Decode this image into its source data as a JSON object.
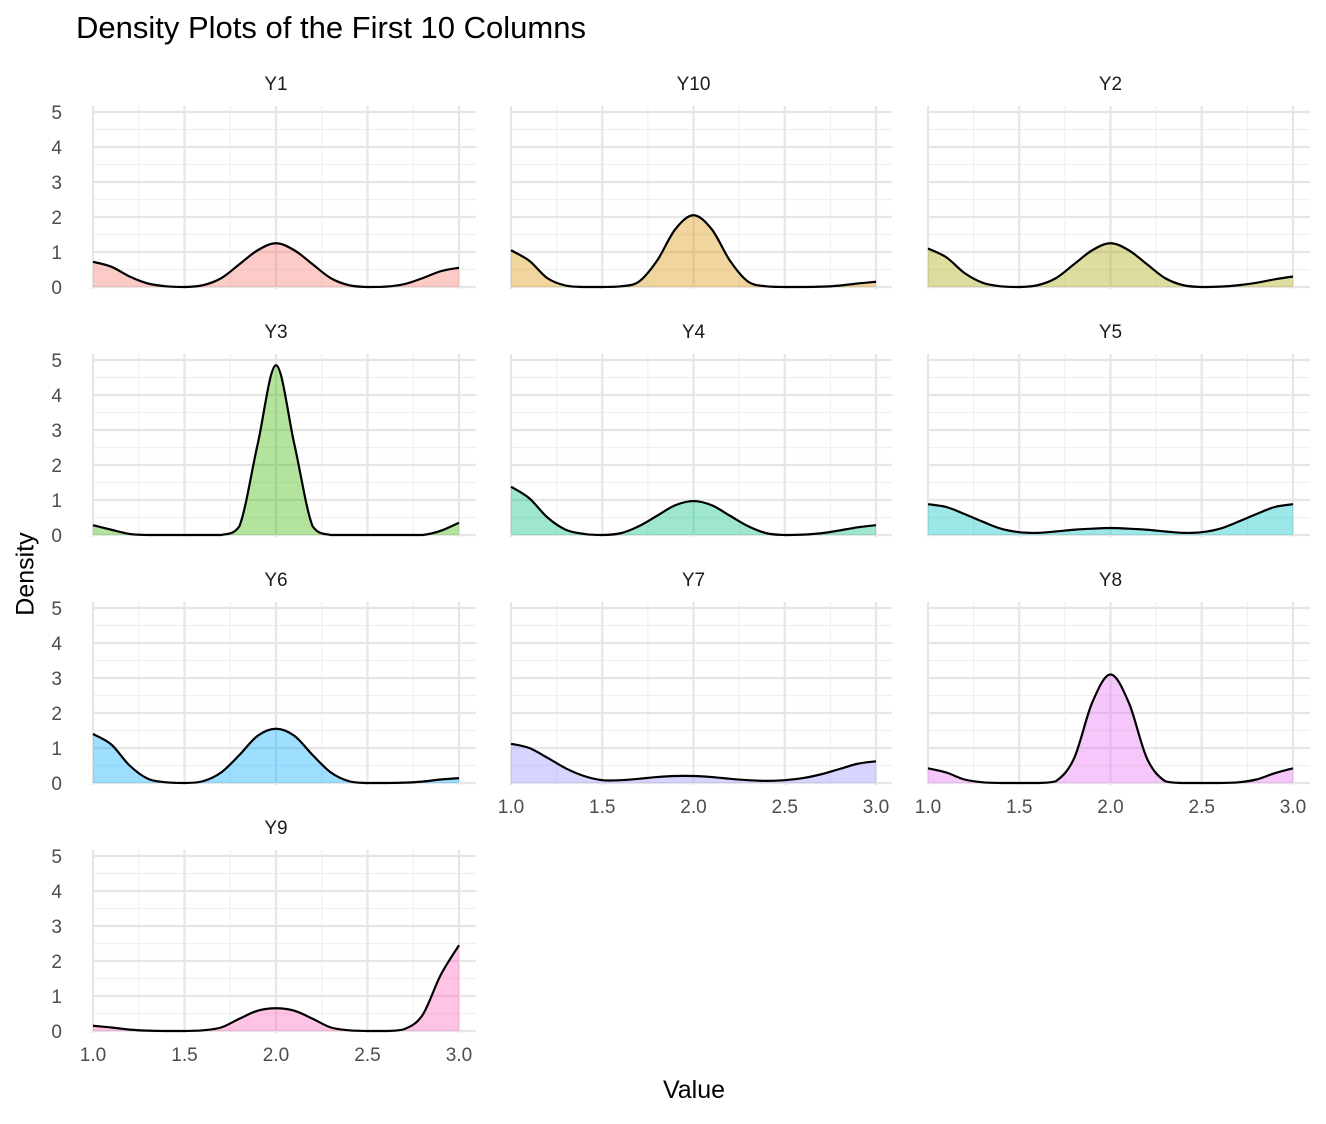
{
  "chart_data": {
    "type": "area",
    "title": "Density Plots of the First 10 Columns",
    "xlabel": "Value",
    "ylabel": "Density",
    "xlim": [
      1.0,
      3.0
    ],
    "ylim": [
      0,
      5
    ],
    "x_ticks": [
      "1.0",
      "1.5",
      "2.0",
      "2.5",
      "3.0"
    ],
    "y_ticks": [
      "0",
      "1",
      "2",
      "3",
      "4",
      "5"
    ],
    "grid": true,
    "legend": "none",
    "x": [
      1.0,
      1.1,
      1.2,
      1.3,
      1.4,
      1.5,
      1.6,
      1.7,
      1.8,
      1.9,
      2.0,
      2.1,
      2.2,
      2.3,
      2.4,
      2.5,
      2.6,
      2.7,
      2.8,
      2.9,
      3.0
    ],
    "panels": [
      {
        "name": "Y1",
        "color": "#F8766D",
        "values": [
          0.72,
          0.58,
          0.3,
          0.1,
          0.02,
          0.0,
          0.05,
          0.25,
          0.65,
          1.05,
          1.25,
          1.05,
          0.65,
          0.25,
          0.05,
          0.0,
          0.01,
          0.08,
          0.25,
          0.45,
          0.55
        ]
      },
      {
        "name": "Y10",
        "color": "#D89000",
        "values": [
          1.05,
          0.75,
          0.25,
          0.04,
          0.0,
          0.0,
          0.02,
          0.15,
          0.75,
          1.65,
          2.05,
          1.65,
          0.75,
          0.15,
          0.02,
          0.0,
          0.0,
          0.01,
          0.04,
          0.1,
          0.15
        ]
      },
      {
        "name": "Y2",
        "color": "#A3A500",
        "values": [
          1.1,
          0.85,
          0.4,
          0.12,
          0.02,
          0.0,
          0.05,
          0.25,
          0.65,
          1.05,
          1.25,
          1.05,
          0.65,
          0.25,
          0.05,
          0.0,
          0.01,
          0.05,
          0.12,
          0.22,
          0.3
        ]
      },
      {
        "name": "Y3",
        "color": "#39B600",
        "values": [
          0.28,
          0.15,
          0.03,
          0.0,
          0.0,
          0.0,
          0.0,
          0.0,
          0.25,
          2.6,
          4.85,
          2.6,
          0.25,
          0.0,
          0.0,
          0.0,
          0.0,
          0.0,
          0.0,
          0.12,
          0.35
        ]
      },
      {
        "name": "Y4",
        "color": "#00BF7D",
        "values": [
          1.38,
          1.05,
          0.5,
          0.15,
          0.03,
          0.0,
          0.05,
          0.25,
          0.55,
          0.85,
          0.97,
          0.85,
          0.55,
          0.25,
          0.05,
          0.0,
          0.01,
          0.05,
          0.13,
          0.22,
          0.28
        ]
      },
      {
        "name": "Y5",
        "color": "#00BFC4",
        "values": [
          0.88,
          0.8,
          0.6,
          0.38,
          0.18,
          0.08,
          0.06,
          0.1,
          0.15,
          0.18,
          0.2,
          0.18,
          0.15,
          0.1,
          0.06,
          0.08,
          0.18,
          0.38,
          0.6,
          0.8,
          0.88
        ]
      },
      {
        "name": "Y6",
        "color": "#00A9FF",
        "values": [
          1.4,
          1.1,
          0.5,
          0.12,
          0.02,
          0.0,
          0.05,
          0.3,
          0.8,
          1.35,
          1.55,
          1.35,
          0.8,
          0.3,
          0.05,
          0.0,
          0.0,
          0.01,
          0.04,
          0.1,
          0.14
        ]
      },
      {
        "name": "Y7",
        "color": "#9590FF",
        "values": [
          1.12,
          1.0,
          0.72,
          0.42,
          0.2,
          0.08,
          0.08,
          0.12,
          0.17,
          0.2,
          0.2,
          0.17,
          0.12,
          0.08,
          0.06,
          0.08,
          0.14,
          0.25,
          0.4,
          0.55,
          0.62
        ]
      },
      {
        "name": "Y8",
        "color": "#E76BF3",
        "values": [
          0.42,
          0.3,
          0.1,
          0.02,
          0.0,
          0.0,
          0.0,
          0.05,
          0.7,
          2.3,
          3.1,
          2.3,
          0.7,
          0.05,
          0.0,
          0.0,
          0.0,
          0.02,
          0.1,
          0.28,
          0.42
        ]
      },
      {
        "name": "Y9",
        "color": "#FF62BC",
        "values": [
          0.15,
          0.1,
          0.04,
          0.01,
          0.0,
          0.0,
          0.02,
          0.1,
          0.35,
          0.58,
          0.65,
          0.58,
          0.35,
          0.1,
          0.02,
          0.0,
          0.0,
          0.05,
          0.45,
          1.6,
          2.45
        ]
      }
    ]
  }
}
